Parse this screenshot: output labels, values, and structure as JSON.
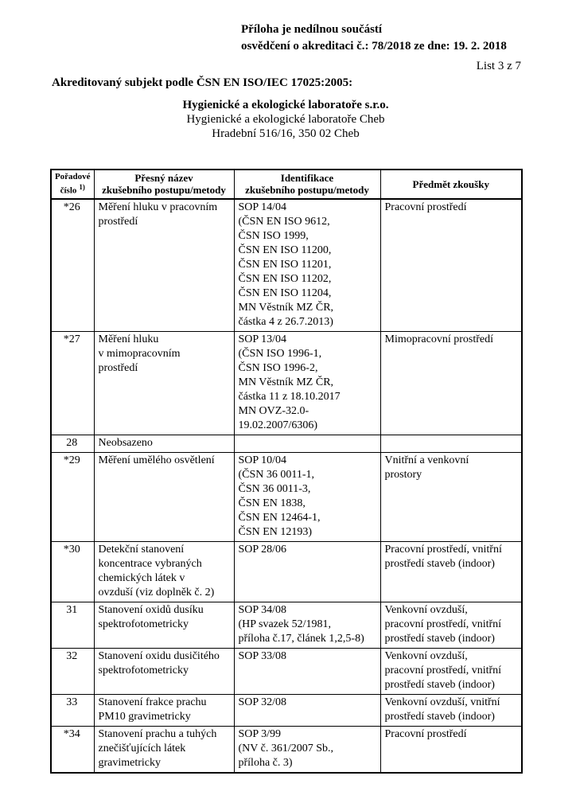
{
  "header": {
    "attachment_note": "Příloha je nedílnou součástí\nosvědčení o akreditaci č.: 78/2018 ze dne: 19. 2. 2018",
    "sheet_number": "List 3 z 7",
    "subject_heading": "Akreditovaný subjekt podle ČSN EN ISO/IEC 17025:2005:",
    "org": {
      "name": "Hygienické a ekologické laboratoře s.r.o.",
      "branch": "Hygienické a ekologické laboratoře Cheb",
      "address": "Hradební 516/16, 350 02 Cheb"
    }
  },
  "table": {
    "headers": {
      "col1": "Pořadové\nčíslo",
      "col1_sup": "1)",
      "col2": "Přesný název\nzkušebního postupu/metody",
      "col3": "Identifikace\nzkušebního postupu/metody",
      "col4": "Předmět zkoušky"
    },
    "rows": [
      {
        "num": "*26",
        "name": "Měření hluku v pracovním\nprostředí",
        "id": "SOP 14/04\n(ČSN EN ISO 9612,\nČSN ISO 1999,\nČSN EN ISO 11200,\nČSN EN ISO 11201,\nČSN EN ISO 11202,\nČSN EN ISO 11204,\nMN Věstník MZ ČR,\nčástka 4 z 26.7.2013)",
        "subject": "Pracovní prostředí"
      },
      {
        "num": "*27",
        "name": "Měření hluku\nv mimopracovním\nprostředí",
        "id": "SOP 13/04\n(ČSN ISO 1996-1,\nČSN ISO 1996-2,\nMN Věstník MZ ČR,\nčástka 11 z 18.10.2017\nMN OVZ-32.0-\n19.02.2007/6306)",
        "subject": "Mimopracovní prostředí"
      },
      {
        "num": "28",
        "name": "Neobsazeno",
        "id": "",
        "subject": ""
      },
      {
        "num": "*29",
        "name": "Měření umělého osvětlení",
        "id": "SOP 10/04\n(ČSN 36 0011-1,\nČSN 36 0011-3,\nČSN EN 1838,\nČSN EN 12464-1,\nČSN EN 12193)",
        "subject": "Vnitřní a venkovní\nprostory"
      },
      {
        "num": "*30",
        "name": "Detekční stanovení\nkoncentrace vybraných\nchemických látek v\novzduší (viz doplněk č. 2)",
        "id": "SOP 28/06",
        "subject": "Pracovní prostředí, vnitřní\nprostředí staveb (indoor)"
      },
      {
        "num": "31",
        "name": "Stanovení oxidů dusíku\nspektrofotometricky",
        "id": "SOP 34/08\n(HP svazek 52/1981,\npříloha č.17, článek 1,2,5-8)",
        "subject": "Venkovní ovzduší,\npracovní prostředí, vnitřní\nprostředí staveb (indoor)"
      },
      {
        "num": "32",
        "name": "Stanovení oxidu dusičitého\nspektrofotometricky",
        "id": "SOP 33/08",
        "subject": "Venkovní ovzduší,\npracovní prostředí, vnitřní\nprostředí staveb (indoor)"
      },
      {
        "num": "33",
        "name": "Stanovení frakce prachu\nPM10 gravimetricky",
        "id": "SOP 32/08",
        "subject": "Venkovní ovzduší, vnitřní\nprostředí staveb (indoor)"
      },
      {
        "num": "*34",
        "name": "Stanovení prachu a tuhých\nznečišťujících látek\ngravimetricky",
        "id": "SOP 3/99\n(NV č. 361/2007 Sb.,\npříloha č. 3)",
        "subject": "Pracovní prostředí"
      }
    ]
  }
}
